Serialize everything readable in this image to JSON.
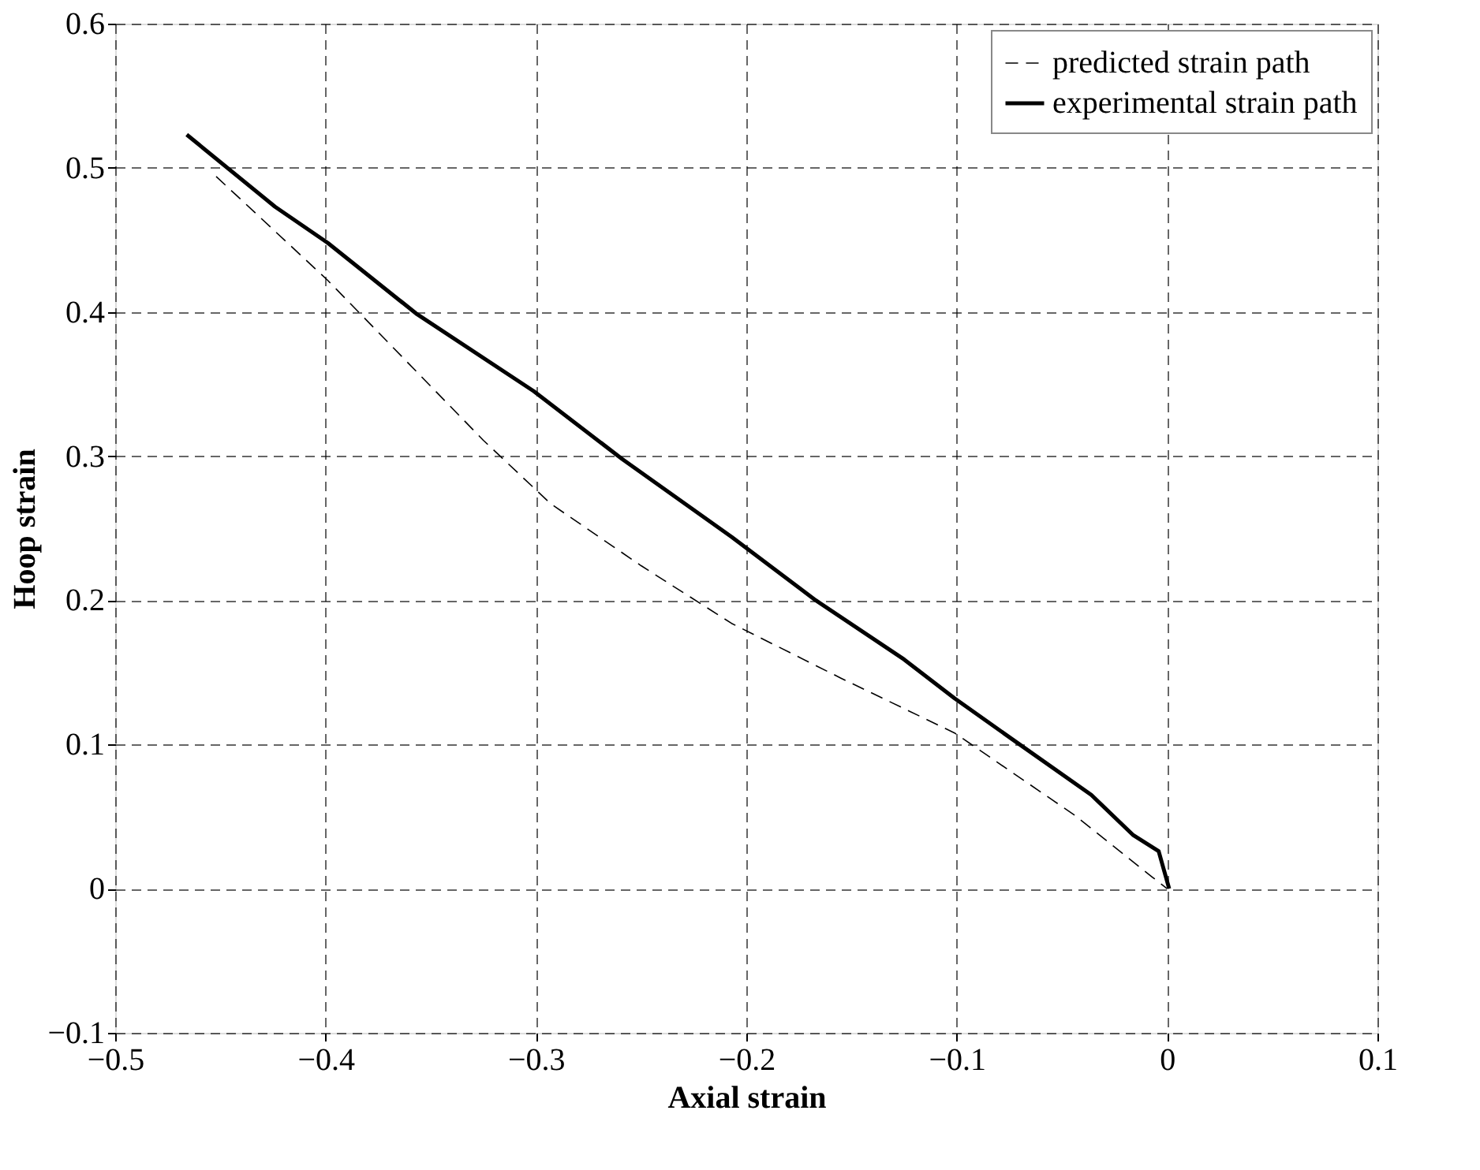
{
  "chart_data": {
    "type": "line",
    "xlabel": "Axial strain",
    "ylabel": "Hoop strain",
    "xlim": [
      -0.5,
      0.1
    ],
    "xticks": [
      -0.5,
      -0.4,
      -0.3,
      -0.2,
      -0.1,
      0,
      0.1
    ],
    "ylim": [
      -0.1,
      0.6
    ],
    "yticks": [
      -0.1,
      0,
      0.1,
      0.2,
      0.3,
      0.4,
      0.5,
      0.6
    ],
    "grid": true,
    "legend": "top right",
    "series": [
      {
        "name": "predicted strain path",
        "color": "#000000",
        "line_style": "dashed",
        "x": [
          -0.452,
          -0.399,
          -0.325,
          -0.293,
          -0.25,
          -0.207,
          -0.155,
          -0.101,
          -0.044,
          -0.007,
          0.0
        ],
        "values": [
          0.494,
          0.422,
          0.311,
          0.267,
          0.224,
          0.184,
          0.146,
          0.108,
          0.051,
          0.008,
          0.0
        ]
      },
      {
        "name": "experimental strain path",
        "color": "#000000",
        "line_style": "solid",
        "x": [
          -0.466,
          -0.424,
          -0.399,
          -0.357,
          -0.301,
          -0.259,
          -0.207,
          -0.167,
          -0.125,
          -0.101,
          -0.072,
          -0.036,
          -0.016,
          -0.004,
          0.001
        ],
        "values": [
          0.523,
          0.473,
          0.448,
          0.399,
          0.345,
          0.298,
          0.244,
          0.2,
          0.159,
          0.132,
          0.102,
          0.065,
          0.037,
          0.026,
          0.0
        ]
      }
    ]
  }
}
